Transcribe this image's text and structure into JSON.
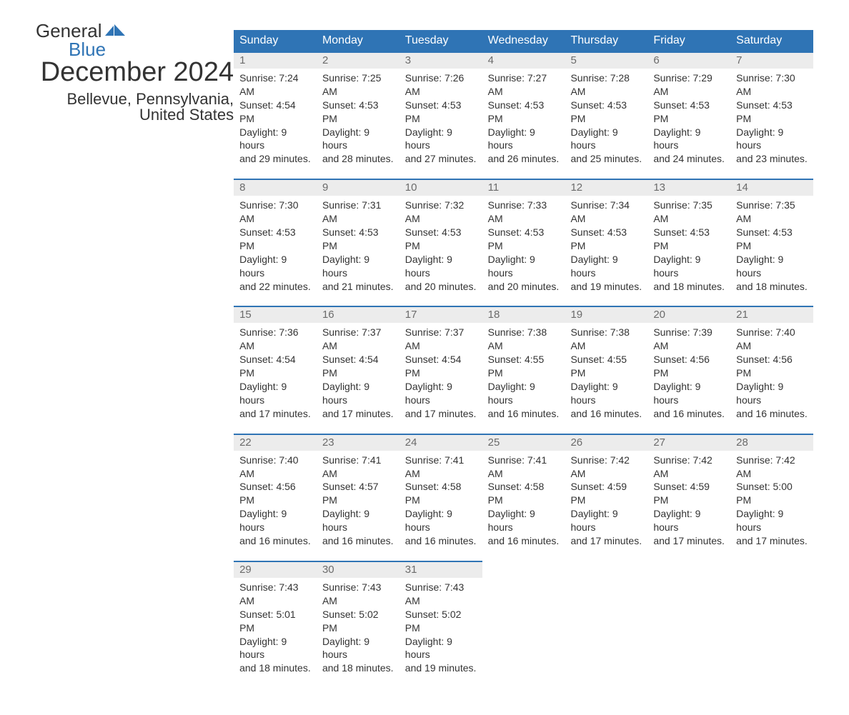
{
  "logo": {
    "text_top": "General",
    "text_bottom": "Blue",
    "flag_color": "#2f74b5",
    "top_color": "#333333",
    "bottom_color": "#2f74b5"
  },
  "header": {
    "month_title": "December 2024",
    "location": "Bellevue, Pennsylvania, United States"
  },
  "colors": {
    "header_bg": "#2f74b5",
    "header_text": "#ffffff",
    "day_row_bg": "#ececec",
    "day_row_border": "#2f74b5",
    "day_number": "#6b6b6b",
    "body_text": "#333333",
    "background": "#ffffff"
  },
  "weekdays": [
    "Sunday",
    "Monday",
    "Tuesday",
    "Wednesday",
    "Thursday",
    "Friday",
    "Saturday"
  ],
  "days": [
    {
      "num": "1",
      "sunrise": "Sunrise: 7:24 AM",
      "sunset": "Sunset: 4:54 PM",
      "daylight1": "Daylight: 9 hours",
      "daylight2": "and 29 minutes."
    },
    {
      "num": "2",
      "sunrise": "Sunrise: 7:25 AM",
      "sunset": "Sunset: 4:53 PM",
      "daylight1": "Daylight: 9 hours",
      "daylight2": "and 28 minutes."
    },
    {
      "num": "3",
      "sunrise": "Sunrise: 7:26 AM",
      "sunset": "Sunset: 4:53 PM",
      "daylight1": "Daylight: 9 hours",
      "daylight2": "and 27 minutes."
    },
    {
      "num": "4",
      "sunrise": "Sunrise: 7:27 AM",
      "sunset": "Sunset: 4:53 PM",
      "daylight1": "Daylight: 9 hours",
      "daylight2": "and 26 minutes."
    },
    {
      "num": "5",
      "sunrise": "Sunrise: 7:28 AM",
      "sunset": "Sunset: 4:53 PM",
      "daylight1": "Daylight: 9 hours",
      "daylight2": "and 25 minutes."
    },
    {
      "num": "6",
      "sunrise": "Sunrise: 7:29 AM",
      "sunset": "Sunset: 4:53 PM",
      "daylight1": "Daylight: 9 hours",
      "daylight2": "and 24 minutes."
    },
    {
      "num": "7",
      "sunrise": "Sunrise: 7:30 AM",
      "sunset": "Sunset: 4:53 PM",
      "daylight1": "Daylight: 9 hours",
      "daylight2": "and 23 minutes."
    },
    {
      "num": "8",
      "sunrise": "Sunrise: 7:30 AM",
      "sunset": "Sunset: 4:53 PM",
      "daylight1": "Daylight: 9 hours",
      "daylight2": "and 22 minutes."
    },
    {
      "num": "9",
      "sunrise": "Sunrise: 7:31 AM",
      "sunset": "Sunset: 4:53 PM",
      "daylight1": "Daylight: 9 hours",
      "daylight2": "and 21 minutes."
    },
    {
      "num": "10",
      "sunrise": "Sunrise: 7:32 AM",
      "sunset": "Sunset: 4:53 PM",
      "daylight1": "Daylight: 9 hours",
      "daylight2": "and 20 minutes."
    },
    {
      "num": "11",
      "sunrise": "Sunrise: 7:33 AM",
      "sunset": "Sunset: 4:53 PM",
      "daylight1": "Daylight: 9 hours",
      "daylight2": "and 20 minutes."
    },
    {
      "num": "12",
      "sunrise": "Sunrise: 7:34 AM",
      "sunset": "Sunset: 4:53 PM",
      "daylight1": "Daylight: 9 hours",
      "daylight2": "and 19 minutes."
    },
    {
      "num": "13",
      "sunrise": "Sunrise: 7:35 AM",
      "sunset": "Sunset: 4:53 PM",
      "daylight1": "Daylight: 9 hours",
      "daylight2": "and 18 minutes."
    },
    {
      "num": "14",
      "sunrise": "Sunrise: 7:35 AM",
      "sunset": "Sunset: 4:53 PM",
      "daylight1": "Daylight: 9 hours",
      "daylight2": "and 18 minutes."
    },
    {
      "num": "15",
      "sunrise": "Sunrise: 7:36 AM",
      "sunset": "Sunset: 4:54 PM",
      "daylight1": "Daylight: 9 hours",
      "daylight2": "and 17 minutes."
    },
    {
      "num": "16",
      "sunrise": "Sunrise: 7:37 AM",
      "sunset": "Sunset: 4:54 PM",
      "daylight1": "Daylight: 9 hours",
      "daylight2": "and 17 minutes."
    },
    {
      "num": "17",
      "sunrise": "Sunrise: 7:37 AM",
      "sunset": "Sunset: 4:54 PM",
      "daylight1": "Daylight: 9 hours",
      "daylight2": "and 17 minutes."
    },
    {
      "num": "18",
      "sunrise": "Sunrise: 7:38 AM",
      "sunset": "Sunset: 4:55 PM",
      "daylight1": "Daylight: 9 hours",
      "daylight2": "and 16 minutes."
    },
    {
      "num": "19",
      "sunrise": "Sunrise: 7:38 AM",
      "sunset": "Sunset: 4:55 PM",
      "daylight1": "Daylight: 9 hours",
      "daylight2": "and 16 minutes."
    },
    {
      "num": "20",
      "sunrise": "Sunrise: 7:39 AM",
      "sunset": "Sunset: 4:56 PM",
      "daylight1": "Daylight: 9 hours",
      "daylight2": "and 16 minutes."
    },
    {
      "num": "21",
      "sunrise": "Sunrise: 7:40 AM",
      "sunset": "Sunset: 4:56 PM",
      "daylight1": "Daylight: 9 hours",
      "daylight2": "and 16 minutes."
    },
    {
      "num": "22",
      "sunrise": "Sunrise: 7:40 AM",
      "sunset": "Sunset: 4:56 PM",
      "daylight1": "Daylight: 9 hours",
      "daylight2": "and 16 minutes."
    },
    {
      "num": "23",
      "sunrise": "Sunrise: 7:41 AM",
      "sunset": "Sunset: 4:57 PM",
      "daylight1": "Daylight: 9 hours",
      "daylight2": "and 16 minutes."
    },
    {
      "num": "24",
      "sunrise": "Sunrise: 7:41 AM",
      "sunset": "Sunset: 4:58 PM",
      "daylight1": "Daylight: 9 hours",
      "daylight2": "and 16 minutes."
    },
    {
      "num": "25",
      "sunrise": "Sunrise: 7:41 AM",
      "sunset": "Sunset: 4:58 PM",
      "daylight1": "Daylight: 9 hours",
      "daylight2": "and 16 minutes."
    },
    {
      "num": "26",
      "sunrise": "Sunrise: 7:42 AM",
      "sunset": "Sunset: 4:59 PM",
      "daylight1": "Daylight: 9 hours",
      "daylight2": "and 17 minutes."
    },
    {
      "num": "27",
      "sunrise": "Sunrise: 7:42 AM",
      "sunset": "Sunset: 4:59 PM",
      "daylight1": "Daylight: 9 hours",
      "daylight2": "and 17 minutes."
    },
    {
      "num": "28",
      "sunrise": "Sunrise: 7:42 AM",
      "sunset": "Sunset: 5:00 PM",
      "daylight1": "Daylight: 9 hours",
      "daylight2": "and 17 minutes."
    },
    {
      "num": "29",
      "sunrise": "Sunrise: 7:43 AM",
      "sunset": "Sunset: 5:01 PM",
      "daylight1": "Daylight: 9 hours",
      "daylight2": "and 18 minutes."
    },
    {
      "num": "30",
      "sunrise": "Sunrise: 7:43 AM",
      "sunset": "Sunset: 5:02 PM",
      "daylight1": "Daylight: 9 hours",
      "daylight2": "and 18 minutes."
    },
    {
      "num": "31",
      "sunrise": "Sunrise: 7:43 AM",
      "sunset": "Sunset: 5:02 PM",
      "daylight1": "Daylight: 9 hours",
      "daylight2": "and 19 minutes."
    }
  ]
}
